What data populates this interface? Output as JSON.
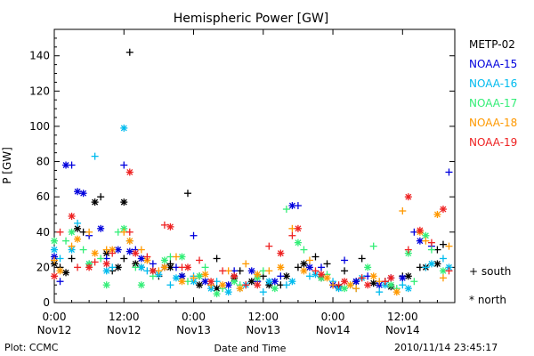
{
  "chart_data": {
    "type": "scatter",
    "title": "Hemispheric Power [GW]",
    "ylabel": "P [GW]",
    "xlabel": "Date and Time",
    "ylim": [
      0,
      155
    ],
    "yticks": [
      0,
      20,
      40,
      60,
      80,
      100,
      120,
      140
    ],
    "xlim_hours": [
      0,
      69
    ],
    "xticks": [
      {
        "hour": 0,
        "time": "0:00",
        "date": "Nov12"
      },
      {
        "hour": 12,
        "time": "12:00",
        "date": "Nov12"
      },
      {
        "hour": 24,
        "time": "0:00",
        "date": "Nov13"
      },
      {
        "hour": 36,
        "time": "12:00",
        "date": "Nov13"
      },
      {
        "hour": 48,
        "time": "0:00",
        "date": "Nov14"
      },
      {
        "hour": 60,
        "time": "12:00",
        "date": "Nov14"
      }
    ],
    "grid": false,
    "legend_position": "right",
    "markers": {
      "south": "+",
      "north": "*"
    },
    "series": [
      {
        "name": "METP-02",
        "color": "#000000",
        "south": [
          [
            1,
            20
          ],
          [
            3,
            25
          ],
          [
            5,
            40
          ],
          [
            8,
            60
          ],
          [
            10,
            18
          ],
          [
            12,
            25
          ],
          [
            13,
            142
          ],
          [
            15,
            20
          ],
          [
            18,
            15
          ],
          [
            20,
            22
          ],
          [
            23,
            62
          ],
          [
            25,
            15
          ],
          [
            28,
            25
          ],
          [
            32,
            18
          ],
          [
            36,
            15
          ],
          [
            39,
            10
          ],
          [
            42,
            20
          ],
          [
            45,
            26
          ],
          [
            47,
            22
          ],
          [
            50,
            18
          ],
          [
            53,
            25
          ],
          [
            57,
            12
          ],
          [
            60,
            15
          ],
          [
            63,
            20
          ],
          [
            66,
            30
          ],
          [
            67,
            33
          ]
        ],
        "north": [
          [
            0,
            22
          ],
          [
            2,
            17
          ],
          [
            4,
            42
          ],
          [
            7,
            57
          ],
          [
            9,
            28
          ],
          [
            11,
            20
          ],
          [
            12,
            57
          ],
          [
            14,
            22
          ],
          [
            17,
            18
          ],
          [
            20,
            20
          ],
          [
            22,
            15
          ],
          [
            25,
            10
          ],
          [
            28,
            8
          ],
          [
            31,
            14
          ],
          [
            34,
            12
          ],
          [
            37,
            10
          ],
          [
            40,
            15
          ],
          [
            43,
            22
          ],
          [
            46,
            14
          ],
          [
            49,
            9
          ],
          [
            52,
            12
          ],
          [
            55,
            11
          ],
          [
            58,
            9
          ],
          [
            61,
            15
          ],
          [
            64,
            20
          ],
          [
            66,
            22
          ]
        ]
      },
      {
        "name": "NOAA-15",
        "color": "#0000dd",
        "south": [
          [
            1,
            12
          ],
          [
            3,
            78
          ],
          [
            6,
            38
          ],
          [
            9,
            25
          ],
          [
            12,
            78
          ],
          [
            14,
            30
          ],
          [
            17,
            22
          ],
          [
            21,
            20
          ],
          [
            24,
            38
          ],
          [
            27,
            10
          ],
          [
            31,
            18
          ],
          [
            35,
            12
          ],
          [
            39,
            15
          ],
          [
            42,
            55
          ],
          [
            46,
            20
          ],
          [
            50,
            24
          ],
          [
            54,
            15
          ],
          [
            58,
            14
          ],
          [
            62,
            40
          ],
          [
            65,
            32
          ],
          [
            68,
            74
          ]
        ],
        "north": [
          [
            0,
            26
          ],
          [
            2,
            78
          ],
          [
            4,
            63
          ],
          [
            5,
            62
          ],
          [
            8,
            42
          ],
          [
            11,
            30
          ],
          [
            13,
            29
          ],
          [
            15,
            25
          ],
          [
            19,
            20
          ],
          [
            22,
            15
          ],
          [
            26,
            12
          ],
          [
            30,
            10
          ],
          [
            34,
            18
          ],
          [
            38,
            12
          ],
          [
            41,
            55
          ],
          [
            44,
            20
          ],
          [
            48,
            10
          ],
          [
            52,
            12
          ],
          [
            56,
            10
          ],
          [
            60,
            14
          ],
          [
            63,
            35
          ]
        ]
      },
      {
        "name": "NOAA-16",
        "color": "#00bbee",
        "south": [
          [
            1,
            25
          ],
          [
            4,
            45
          ],
          [
            7,
            83
          ],
          [
            10,
            20
          ],
          [
            13,
            35
          ],
          [
            16,
            18
          ],
          [
            20,
            10
          ],
          [
            24,
            15
          ],
          [
            28,
            12
          ],
          [
            32,
            8
          ],
          [
            36,
            6
          ],
          [
            40,
            10
          ],
          [
            44,
            15
          ],
          [
            48,
            12
          ],
          [
            52,
            8
          ],
          [
            56,
            6
          ],
          [
            60,
            10
          ],
          [
            64,
            20
          ],
          [
            67,
            25
          ]
        ],
        "north": [
          [
            0,
            30
          ],
          [
            3,
            30
          ],
          [
            6,
            22
          ],
          [
            9,
            18
          ],
          [
            12,
            99
          ],
          [
            15,
            20
          ],
          [
            18,
            16
          ],
          [
            21,
            14
          ],
          [
            24,
            12
          ],
          [
            27,
            8
          ],
          [
            30,
            6
          ],
          [
            33,
            10
          ],
          [
            37,
            12
          ],
          [
            41,
            12
          ],
          [
            45,
            16
          ],
          [
            49,
            8
          ],
          [
            53,
            14
          ],
          [
            57,
            10
          ],
          [
            61,
            8
          ],
          [
            65,
            22
          ],
          [
            68,
            20
          ]
        ]
      },
      {
        "name": "NOAA-17",
        "color": "#33ee77",
        "south": [
          [
            2,
            35
          ],
          [
            5,
            30
          ],
          [
            8,
            25
          ],
          [
            11,
            40
          ],
          [
            14,
            20
          ],
          [
            17,
            15
          ],
          [
            20,
            26
          ],
          [
            23,
            12
          ],
          [
            26,
            20
          ],
          [
            29,
            8
          ],
          [
            32,
            10
          ],
          [
            36,
            18
          ],
          [
            40,
            53
          ],
          [
            43,
            30
          ],
          [
            47,
            16
          ],
          [
            51,
            10
          ],
          [
            55,
            32
          ],
          [
            59,
            8
          ],
          [
            62,
            12
          ],
          [
            65,
            30
          ]
        ],
        "north": [
          [
            0,
            35
          ],
          [
            3,
            40
          ],
          [
            6,
            22
          ],
          [
            9,
            10
          ],
          [
            12,
            42
          ],
          [
            15,
            10
          ],
          [
            19,
            24
          ],
          [
            22,
            26
          ],
          [
            25,
            15
          ],
          [
            28,
            5
          ],
          [
            31,
            12
          ],
          [
            35,
            14
          ],
          [
            38,
            8
          ],
          [
            42,
            34
          ],
          [
            46,
            14
          ],
          [
            50,
            8
          ],
          [
            54,
            20
          ],
          [
            58,
            10
          ],
          [
            61,
            28
          ],
          [
            64,
            38
          ],
          [
            67,
            18
          ]
        ]
      },
      {
        "name": "NOAA-18",
        "color": "#ff9900",
        "south": [
          [
            0,
            24
          ],
          [
            3,
            32
          ],
          [
            6,
            40
          ],
          [
            9,
            30
          ],
          [
            12,
            40
          ],
          [
            15,
            30
          ],
          [
            18,
            18
          ],
          [
            21,
            26
          ],
          [
            24,
            14
          ],
          [
            27,
            10
          ],
          [
            30,
            18
          ],
          [
            33,
            22
          ],
          [
            37,
            18
          ],
          [
            41,
            42
          ],
          [
            44,
            24
          ],
          [
            48,
            10
          ],
          [
            52,
            8
          ],
          [
            56,
            12
          ],
          [
            60,
            52
          ],
          [
            64,
            35
          ],
          [
            67,
            14
          ],
          [
            68,
            32
          ]
        ],
        "north": [
          [
            1,
            18
          ],
          [
            4,
            36
          ],
          [
            7,
            28
          ],
          [
            10,
            30
          ],
          [
            13,
            35
          ],
          [
            16,
            24
          ],
          [
            19,
            20
          ],
          [
            22,
            12
          ],
          [
            26,
            16
          ],
          [
            29,
            10
          ],
          [
            32,
            8
          ],
          [
            35,
            16
          ],
          [
            39,
            20
          ],
          [
            43,
            18
          ],
          [
            47,
            14
          ],
          [
            51,
            10
          ],
          [
            55,
            15
          ],
          [
            59,
            6
          ],
          [
            63,
            40
          ],
          [
            66,
            50
          ]
        ]
      },
      {
        "name": "NOAA-19",
        "color": "#ee2222",
        "south": [
          [
            1,
            40
          ],
          [
            4,
            20
          ],
          [
            7,
            23
          ],
          [
            10,
            28
          ],
          [
            13,
            40
          ],
          [
            16,
            26
          ],
          [
            19,
            44
          ],
          [
            22,
            20
          ],
          [
            25,
            24
          ],
          [
            29,
            18
          ],
          [
            33,
            10
          ],
          [
            37,
            32
          ],
          [
            41,
            38
          ],
          [
            45,
            18
          ],
          [
            49,
            10
          ],
          [
            53,
            14
          ],
          [
            57,
            12
          ],
          [
            61,
            30
          ],
          [
            65,
            34
          ],
          [
            68,
            18
          ]
        ],
        "north": [
          [
            0,
            15
          ],
          [
            3,
            49
          ],
          [
            6,
            20
          ],
          [
            9,
            22
          ],
          [
            13,
            74
          ],
          [
            14,
            28
          ],
          [
            17,
            18
          ],
          [
            20,
            43
          ],
          [
            23,
            20
          ],
          [
            27,
            12
          ],
          [
            31,
            15
          ],
          [
            35,
            10
          ],
          [
            39,
            28
          ],
          [
            42,
            42
          ],
          [
            46,
            16
          ],
          [
            50,
            12
          ],
          [
            54,
            10
          ],
          [
            58,
            14
          ],
          [
            61,
            60
          ],
          [
            63,
            41
          ],
          [
            67,
            53
          ]
        ]
      }
    ]
  },
  "markers_legend": {
    "south_symbol": "+",
    "south_label": "south",
    "north_symbol": "*",
    "north_label": "north"
  },
  "footer": {
    "plot_label": "Plot: CCMC",
    "timestamp": "2010/11/14 23:45:17"
  }
}
